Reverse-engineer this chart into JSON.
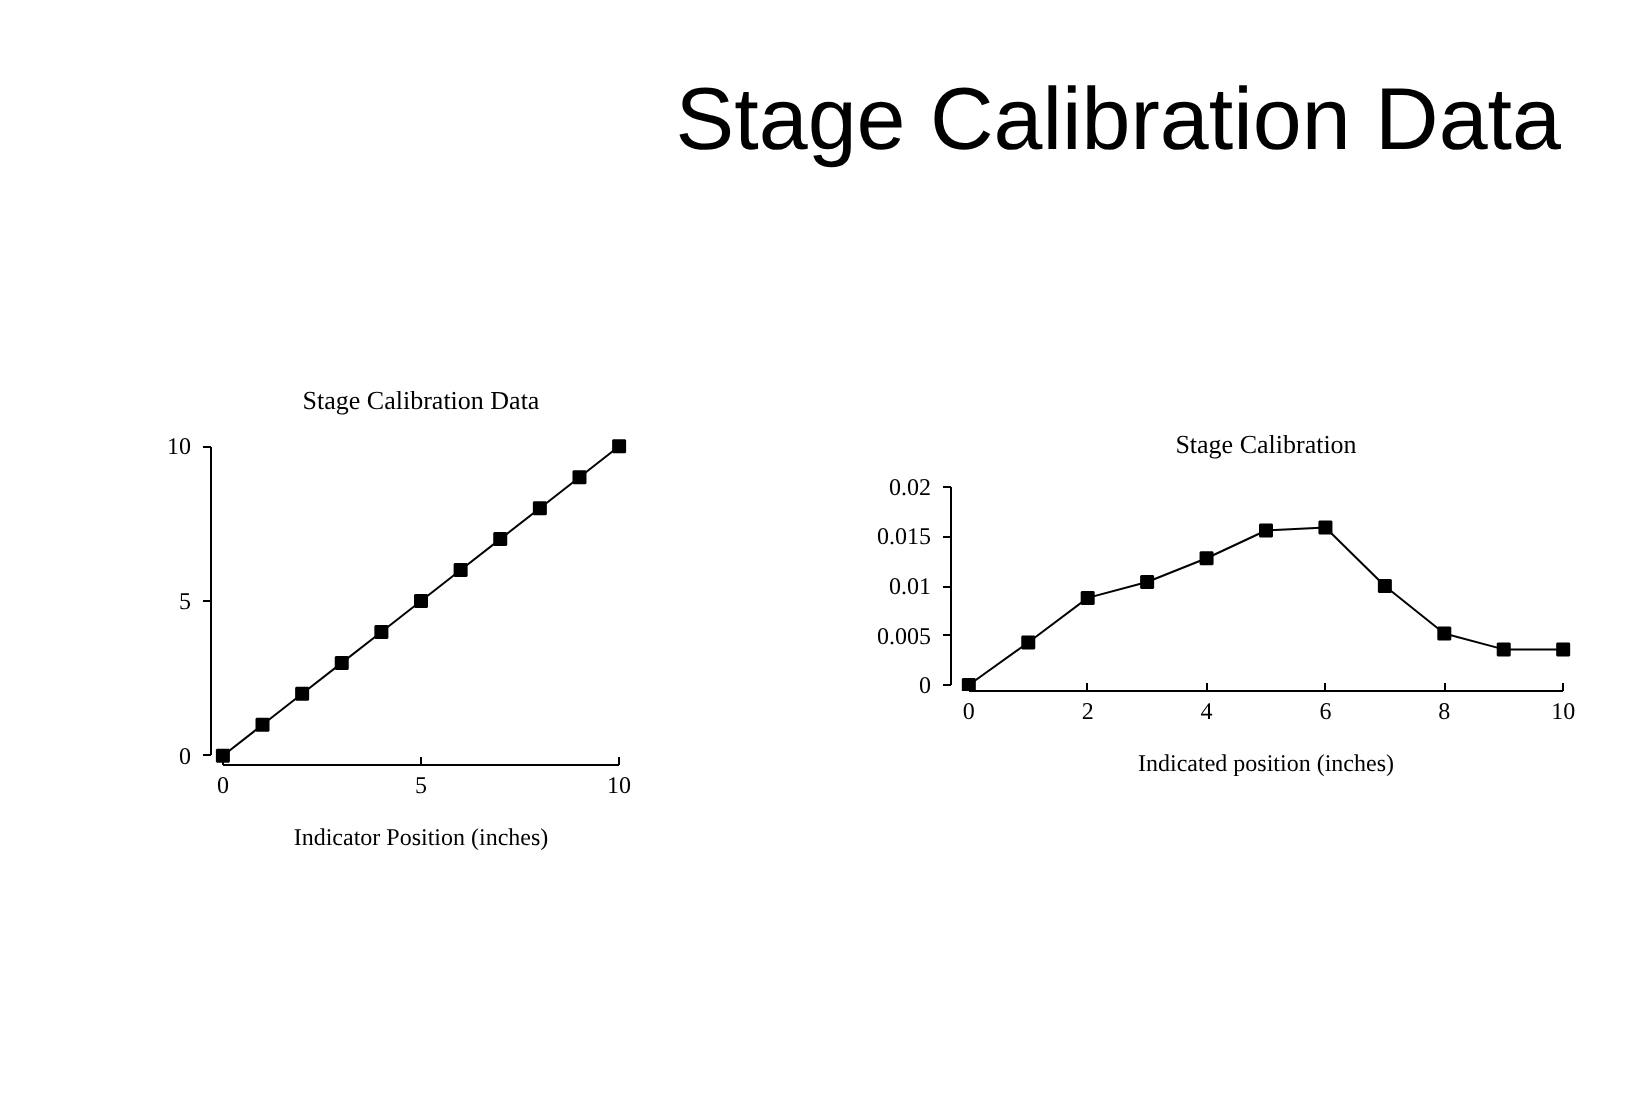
{
  "chart_data": [
    {
      "type": "other",
      "title": "Stage Calibration Data"
    },
    {
      "type": "line",
      "title": "Stage Calibration Data",
      "xlabel": "Indicator Position (inches)",
      "x": [
        0,
        1,
        2,
        3,
        4,
        5,
        6,
        7,
        8,
        9,
        10
      ],
      "series": [
        {
          "color": "#000000",
          "values": [
            0,
            1,
            2,
            3,
            4,
            5,
            6,
            7,
            8,
            9,
            10
          ]
        }
      ],
      "xlim": [
        0,
        10
      ],
      "ylim": [
        0,
        10
      ],
      "xticks": [
        0,
        5,
        10
      ],
      "yticks": [
        0,
        5,
        10
      ],
      "marker": "square",
      "line_style": "solid",
      "grid": false
    },
    {
      "type": "line",
      "title": "Stage Calibration",
      "xlabel": "Indicated position (inches)",
      "x": [
        0,
        1,
        2,
        3,
        4,
        5,
        6,
        7,
        8,
        9,
        10
      ],
      "series": [
        {
          "color": "#000000",
          "values": [
            0,
            0.0043,
            0.0088,
            0.0104,
            0.0128,
            0.0156,
            0.0159,
            0.01,
            0.0052,
            0.0036,
            0.0036
          ]
        }
      ],
      "xlim": [
        0,
        10
      ],
      "ylim": [
        0,
        0.02
      ],
      "xticks": [
        0,
        2,
        4,
        6,
        8,
        10
      ],
      "yticks": [
        0,
        0.005,
        0.01,
        0.015,
        0.02
      ],
      "marker": "square",
      "line_style": "solid",
      "grid": false
    }
  ]
}
